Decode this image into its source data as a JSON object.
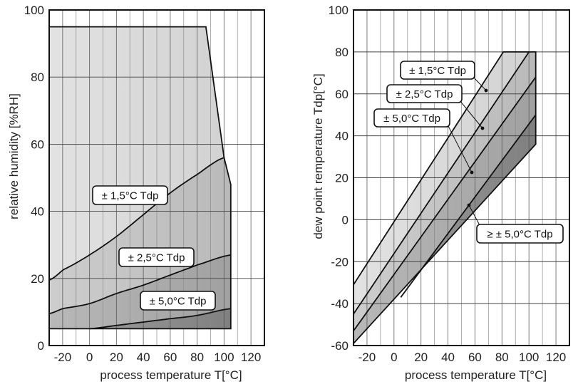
{
  "chart_data": [
    {
      "type": "area",
      "title": "",
      "xlabel": "process temperature T[°C]",
      "ylabel": "relative humidity [%RH]",
      "xlim": [
        -30,
        130
      ],
      "ylim": [
        0,
        100
      ],
      "xticks": [
        -20,
        0,
        20,
        40,
        60,
        80,
        100,
        120
      ],
      "yticks": [
        0,
        20,
        40,
        60,
        80,
        100
      ],
      "grid": {
        "vertical_every": 10,
        "horizontal_every": 20
      },
      "envelope": {
        "name": "operating range",
        "points": [
          [
            -30,
            95
          ],
          [
            86.5,
            95
          ],
          [
            100,
            56
          ],
          [
            105,
            48
          ],
          [
            105,
            5
          ],
          [
            -30,
            5
          ]
        ]
      },
      "boundaries": [
        {
          "name": "± 1,5°C / ± 2,5°C",
          "x": [
            -30,
            -20,
            0,
            20,
            40,
            60,
            80,
            100
          ],
          "y": [
            19.5,
            22.5,
            27,
            32.5,
            39,
            45.5,
            51,
            56
          ]
        },
        {
          "name": "± 2,5°C / ± 5,0°C",
          "x": [
            -30,
            -20,
            0,
            20,
            40,
            60,
            80,
            105
          ],
          "y": [
            9.5,
            11,
            12.5,
            15.5,
            18,
            21,
            24,
            27
          ]
        },
        {
          "name": "± 5,0°C / ≥ ± 5,0°C",
          "x": [
            0,
            20,
            40,
            60,
            80,
            105
          ],
          "y": [
            5,
            6,
            7,
            8,
            9,
            11
          ]
        }
      ],
      "annotations": [
        {
          "text": "± 1,5°C Tdp",
          "x": 82,
          "y": 274
        },
        {
          "text": "± 2,5°C Tdp",
          "x": 219,
          "y": 361
        },
        {
          "text": "± 5,0°C Tdp",
          "x": 249,
          "y": 422
        }
      ],
      "fills": [
        "#dcdcdc",
        "#c4c4c4",
        "#adadad",
        "#8e8e8e"
      ]
    },
    {
      "type": "area",
      "title": "",
      "xlabel": "process temperature T[°C]",
      "ylabel": "dew point remperature Tdp[°C]",
      "xlim": [
        -30,
        130
      ],
      "ylim": [
        -60,
        100
      ],
      "xticks": [
        -20,
        0,
        20,
        40,
        60,
        80,
        100,
        120
      ],
      "yticks": [
        -60,
        -40,
        -20,
        0,
        20,
        40,
        60,
        80,
        100
      ],
      "grid": {
        "vertical_every": 10,
        "horizontal_every": 20
      },
      "envelope": {
        "name": "operating range",
        "points": [
          [
            -30,
            -31
          ],
          [
            81,
            80
          ],
          [
            105,
            80
          ],
          [
            105,
            36
          ],
          [
            -30,
            -59
          ]
        ]
      },
      "boundaries": [
        {
          "name": "± 1,5°C / ± 2,5°C",
          "x": [
            -30,
            100
          ],
          "y": [
            -45,
            80
          ]
        },
        {
          "name": "± 2,5°C / ± 5,0°C",
          "x": [
            -30,
            105
          ],
          "y": [
            -53,
            68
          ]
        },
        {
          "name": "± 5,0°C / ≥ ± 5,0°C",
          "x": [
            5,
            105
          ],
          "y": [
            -37,
            50
          ]
        }
      ],
      "annotations": [
        {
          "text": "± 1,5°C Tdp",
          "pointer": [
            65,
            62
          ]
        },
        {
          "text": "± 2,5°C Tdp",
          "pointer": [
            62,
            44
          ]
        },
        {
          "text": "± 5,0°C Tdp",
          "pointer": [
            54,
            23
          ]
        },
        {
          "text": "≥ ± 5,0°C Tdp",
          "pointer": [
            52,
            7
          ]
        }
      ],
      "fills": [
        "#dcdcdc",
        "#c4c4c4",
        "#adadad",
        "#8e8e8e"
      ]
    }
  ],
  "left": {
    "ylabel": "relative humidity [%RH]",
    "xlabel": "process temperature T[°C]",
    "labels": [
      "± 1,5°C Tdp",
      "± 2,5°C Tdp",
      "± 5,0°C Tdp"
    ]
  },
  "right": {
    "ylabel": "dew point remperature Tdp[°C]",
    "xlabel": "process temperature T[°C]",
    "labels": [
      "± 1,5°C Tdp",
      "± 2,5°C Tdp",
      "± 5,0°C Tdp",
      "≥ ± 5,0°C Tdp"
    ]
  }
}
